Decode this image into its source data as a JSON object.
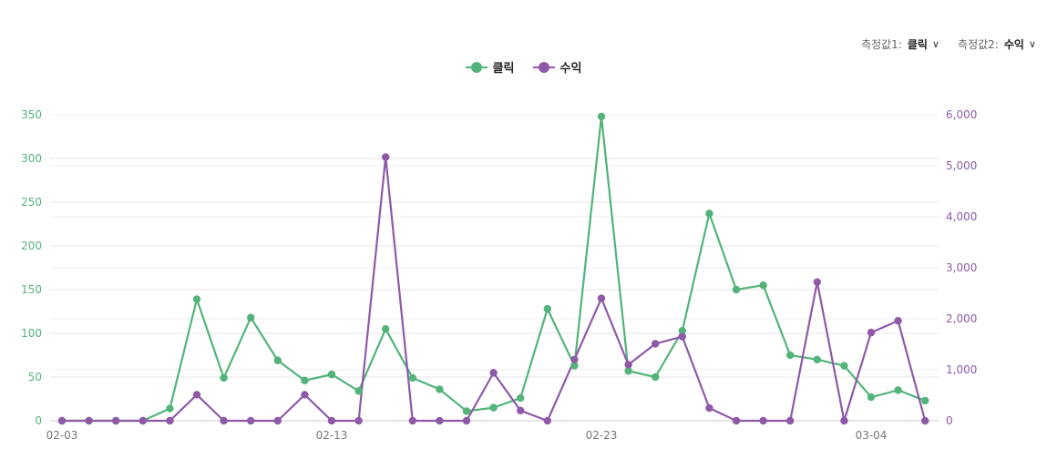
{
  "controls": {
    "measure1_label": "측정값1:",
    "measure1_value": "클릭",
    "measure2_label": "측정값2:",
    "measure2_value": "수익"
  },
  "colors": {
    "green": "#52b47a",
    "purple": "#8e5aa8",
    "grid": "#e6e6e6",
    "xtick": "#777777"
  },
  "chart_data": {
    "type": "line",
    "x_ticks": [
      "02-03",
      "02-13",
      "02-23",
      "03-04"
    ],
    "x_tick_index": [
      0,
      10,
      20,
      30
    ],
    "y_left": {
      "ticks": [
        "0",
        "50",
        "100",
        "150",
        "200",
        "250",
        "300",
        "350"
      ],
      "range": [
        0,
        350
      ]
    },
    "y_right": {
      "ticks": [
        "0",
        "1,000",
        "2,000",
        "3,000",
        "4,000",
        "5,000",
        "6,000"
      ],
      "range": [
        0,
        6000
      ]
    },
    "series": [
      {
        "name": "클릭",
        "axis": "left",
        "values": [
          0,
          0,
          0,
          0,
          14,
          139,
          49,
          118,
          69,
          46,
          53,
          34,
          105,
          49,
          36,
          11,
          15,
          26,
          128,
          63,
          348,
          57,
          50,
          103,
          237,
          150,
          155,
          75,
          70,
          63,
          27,
          35,
          23
        ]
      },
      {
        "name": "수익",
        "axis": "right",
        "values": [
          0,
          0,
          0,
          0,
          0,
          510,
          0,
          0,
          0,
          510,
          0,
          0,
          5170,
          0,
          0,
          0,
          940,
          200,
          0,
          1200,
          2400,
          1100,
          1510,
          1650,
          250,
          0,
          0,
          0,
          2720,
          0,
          1730,
          1960,
          0
        ]
      }
    ]
  }
}
